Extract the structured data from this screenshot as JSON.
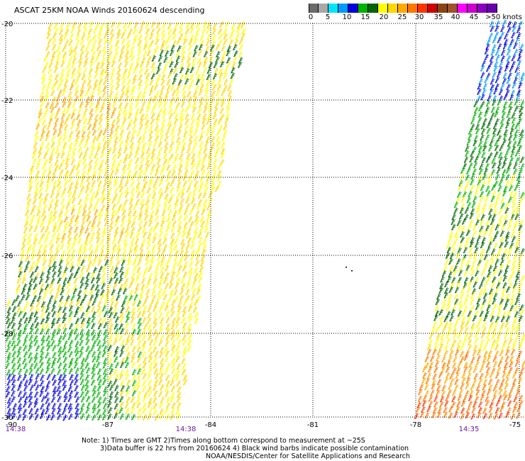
{
  "title": "ASCAT 25KM NOAA Winds 20160624 descending",
  "colorbar": {
    "colors": [
      "#6b6b6b",
      "#a9a9a9",
      "#00e5ff",
      "#0099ff",
      "#0000e0",
      "#00b200",
      "#006600",
      "#ffff00",
      "#ffd700",
      "#ffaa00",
      "#ff7700",
      "#ff3300",
      "#cc0000",
      "#8b4513",
      "#a0522d",
      "#ff00ff",
      "#cc00cc",
      "#8a00c0",
      "#6600aa"
    ],
    "labels": [
      "0",
      "5",
      "10",
      "15",
      "20",
      "25",
      "30",
      "35",
      "40",
      "45",
      ">50 knots"
    ]
  },
  "lat_labels": [
    "-20",
    "-22",
    "-24",
    "-26",
    "-28",
    "-30"
  ],
  "lon_labels": [
    "-90",
    "-87",
    "-84",
    "-81",
    "-78",
    "-75"
  ],
  "time_labels": [
    "14:38",
    "14:38",
    "14:35"
  ],
  "notes": [
    "Note: 1) Times are GMT 2)Times along bottom correspond to measurement at ~25S",
    "3)Data buffer is 22 hrs from 20160624 4) Black wind barbs indicate possible contamination",
    "NOAA/NESDIS/Center for Satellite Applications and Research"
  ],
  "swaths": {
    "left_zone_colors": [
      "#ffd700",
      "#ffaa00",
      "#ffee00",
      "#ffff00",
      "#006600",
      "#00b200",
      "#0000e0"
    ],
    "right_zone_colors": [
      "#0000e0",
      "#0099ff",
      "#006600",
      "#00b200",
      "#ffff00",
      "#ffd700",
      "#ffaa00",
      "#ff7700",
      "#ff3300"
    ]
  }
}
